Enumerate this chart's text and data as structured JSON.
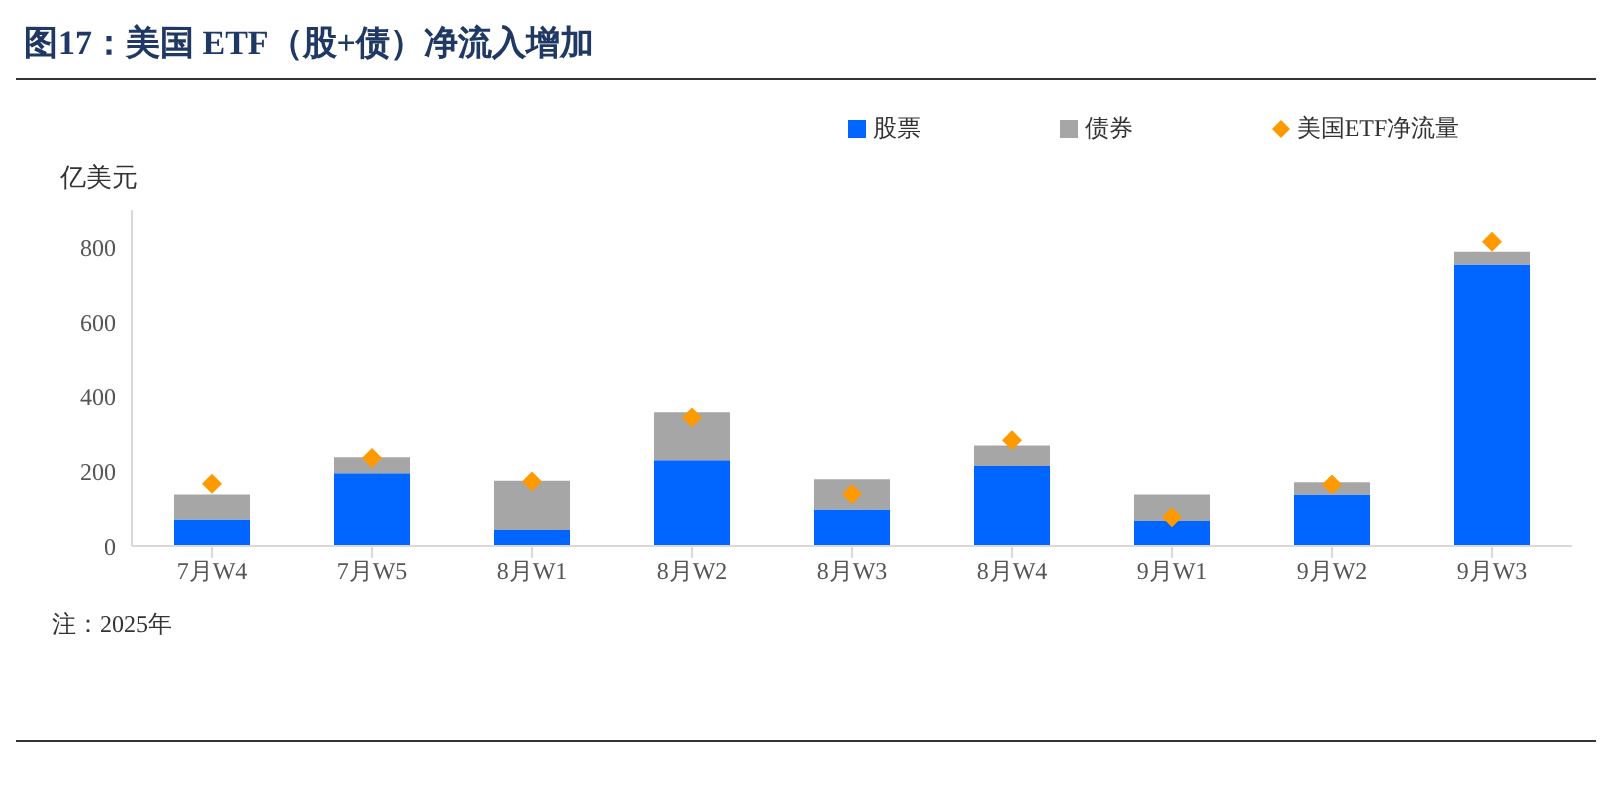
{
  "chart_data": {
    "type": "bar",
    "title": "图17：美国 ETF（股+债）净流入增加",
    "ylabel": "亿美元",
    "annotations": [
      "注：2025年"
    ],
    "categories": [
      "7月W4",
      "7月W5",
      "8月W1",
      "8月W2",
      "8月W3",
      "8月W4",
      "9月W1",
      "9月W2",
      "9月W3"
    ],
    "stacked": true,
    "ylim": [
      0,
      900
    ],
    "yticks": [
      0,
      200,
      400,
      600,
      800
    ],
    "grid": false,
    "legend": "top",
    "marker": "diamond",
    "series": [
      {
        "name": "股票",
        "color": "#0066ff",
        "values": [
          71,
          195,
          43,
          230,
          98,
          214,
          67,
          138,
          754
        ]
      },
      {
        "name": "债券",
        "color": "#a6a6a6",
        "values": [
          67,
          43,
          132,
          128,
          81,
          55,
          71,
          33,
          34
        ]
      },
      {
        "name": "美国ETF净流量",
        "type": "scatter",
        "color": "#ff9900",
        "values": [
          167,
          236,
          173,
          344,
          139,
          283,
          77,
          165,
          815
        ]
      }
    ]
  }
}
